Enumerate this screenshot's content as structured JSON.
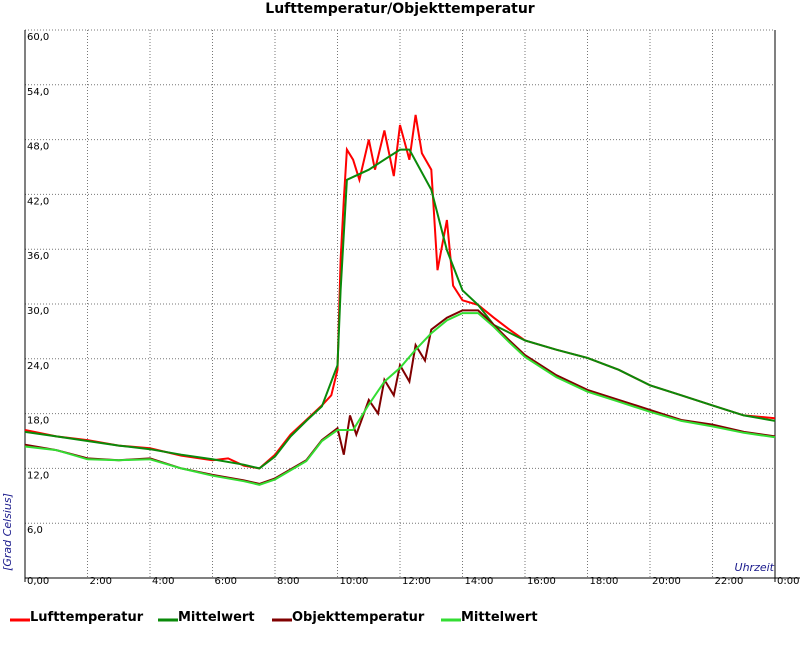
{
  "chart_data": {
    "type": "line",
    "title": "Lufttemperatur/Objekttemperatur",
    "y_label": "[Grad Celsius]",
    "x_label": "Uhrzeit",
    "xlim": [
      0,
      24
    ],
    "xticks": [
      {
        "value": 0,
        "label": "0,00"
      },
      {
        "value": 2,
        "label": "2:00"
      },
      {
        "value": 4,
        "label": "4:00"
      },
      {
        "value": 6,
        "label": "6:00"
      },
      {
        "value": 8,
        "label": "8:00"
      },
      {
        "value": 10,
        "label": "10:00"
      },
      {
        "value": 12,
        "label": "12:00"
      },
      {
        "value": 14,
        "label": "14:00"
      },
      {
        "value": 16,
        "label": "16:00"
      },
      {
        "value": 18,
        "label": "18:00"
      },
      {
        "value": 20,
        "label": "20:00"
      },
      {
        "value": 22,
        "label": "22:00"
      },
      {
        "value": 24,
        "label": "0:00"
      }
    ],
    "ylim": [
      0,
      60
    ],
    "yticks": [
      {
        "value": 6,
        "label": "6,0"
      },
      {
        "value": 12,
        "label": "12,0"
      },
      {
        "value": 18,
        "label": "18,0"
      },
      {
        "value": 24,
        "label": "24,0"
      },
      {
        "value": 30,
        "label": "30,0"
      },
      {
        "value": 36,
        "label": "36,0"
      },
      {
        "value": 42,
        "label": "42,0"
      },
      {
        "value": 48,
        "label": "48,0"
      },
      {
        "value": 54,
        "label": "54,0"
      },
      {
        "value": 60,
        "label": "60,0"
      }
    ],
    "grid": true,
    "series": [
      {
        "name": "Lufttemperatur",
        "color": "#ff0000",
        "x": [
          0,
          1,
          2,
          3,
          4,
          5,
          6,
          6.5,
          7,
          7.5,
          8,
          8.5,
          9,
          9.5,
          9.8,
          10,
          10.1,
          10.2,
          10.3,
          10.5,
          10.7,
          11,
          11.2,
          11.5,
          11.8,
          12,
          12.3,
          12.5,
          12.7,
          13,
          13.2,
          13.5,
          13.7,
          14,
          14.5,
          15,
          15.5,
          16,
          17,
          18,
          19,
          20,
          21,
          22,
          23,
          24
        ],
        "values": [
          16.2,
          15.5,
          15.1,
          14.5,
          14.2,
          13.4,
          12.9,
          13.1,
          12.3,
          12.0,
          13.5,
          15.7,
          17.3,
          18.9,
          20.0,
          22.8,
          34.8,
          41.4,
          46.9,
          45.8,
          43.6,
          48.0,
          44.7,
          49.0,
          44.0,
          49.6,
          45.8,
          50.7,
          46.5,
          44.7,
          33.7,
          39.2,
          32.0,
          30.4,
          29.9,
          28.5,
          27.2,
          26.0,
          25.0,
          24.1,
          22.8,
          21.1,
          20.0,
          18.9,
          17.8,
          17.5
        ]
      },
      {
        "name": "Mittelwert",
        "color": "#0a8a0a",
        "x": [
          0,
          1,
          2,
          3,
          4,
          5,
          6,
          7,
          7.5,
          8,
          8.5,
          9,
          9.5,
          10,
          10.1,
          10.3,
          11,
          12,
          12.3,
          13,
          13.5,
          14,
          14.5,
          15,
          16,
          17,
          18,
          19,
          20,
          21,
          22,
          23,
          24
        ],
        "values": [
          16.0,
          15.5,
          15.0,
          14.5,
          14.1,
          13.5,
          13.0,
          12.4,
          12.0,
          13.3,
          15.5,
          17.2,
          18.8,
          23.3,
          31.5,
          43.6,
          44.7,
          46.9,
          46.9,
          42.5,
          35.9,
          31.5,
          29.9,
          27.7,
          26.0,
          25.0,
          24.1,
          22.8,
          21.1,
          20.0,
          18.9,
          17.8,
          17.2
        ]
      },
      {
        "name": "Objekttemperatur",
        "color": "#800000",
        "x": [
          0,
          1,
          2,
          3,
          4,
          5,
          6,
          7,
          7.5,
          8,
          9,
          9.5,
          10,
          10.2,
          10.4,
          10.6,
          11,
          11.3,
          11.5,
          11.8,
          12,
          12.3,
          12.5,
          12.8,
          13,
          13.5,
          14,
          14.5,
          15,
          15.5,
          16,
          17,
          18,
          19,
          20,
          21,
          22,
          23,
          24
        ],
        "values": [
          14.6,
          14.0,
          13.1,
          12.9,
          13.1,
          12.0,
          11.3,
          10.7,
          10.3,
          10.9,
          12.9,
          15.1,
          16.4,
          13.5,
          17.8,
          15.7,
          19.5,
          18.0,
          21.7,
          20.0,
          23.3,
          21.5,
          25.5,
          23.8,
          27.2,
          28.5,
          29.3,
          29.3,
          27.7,
          26.0,
          24.4,
          22.2,
          20.6,
          19.5,
          18.4,
          17.3,
          16.8,
          16.0,
          15.5
        ]
      },
      {
        "name": "Mittelwert",
        "color": "#33dd33",
        "x": [
          0,
          1,
          2,
          3,
          4,
          5,
          6,
          7,
          7.5,
          8,
          9,
          9.5,
          10,
          10.5,
          11,
          11.5,
          12,
          12.5,
          13,
          13.5,
          14,
          14.5,
          15,
          15.5,
          16,
          17,
          18,
          19,
          20,
          21,
          22,
          23,
          24
        ],
        "values": [
          14.4,
          14.0,
          13.0,
          12.9,
          13.0,
          12.0,
          11.2,
          10.6,
          10.2,
          10.8,
          12.8,
          15.0,
          16.2,
          16.2,
          19.0,
          21.5,
          23.0,
          25.0,
          26.8,
          28.2,
          29.0,
          29.0,
          27.5,
          25.8,
          24.2,
          22.0,
          20.4,
          19.3,
          18.2,
          17.2,
          16.6,
          15.9,
          15.4
        ]
      }
    ]
  }
}
